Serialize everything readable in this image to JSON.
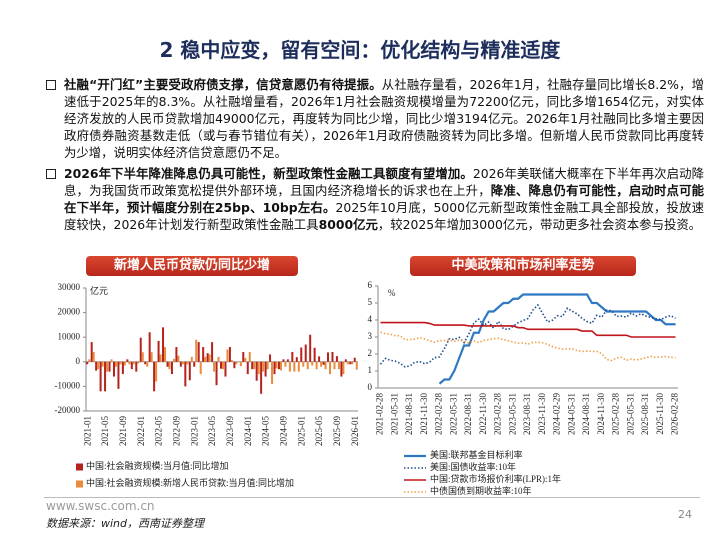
{
  "title": "2 稳中应变，留有空间：优化结构与精准适度",
  "bullets": [
    {
      "segments": [
        {
          "text": "社融“开门红”主要受政府债支撑，信贷意愿仍有待提振。",
          "bold": true
        },
        {
          "text": "从社融存量看，2026年1月，社融存量同比增长8.2%，增速低于2025年的8.3%。从社融增量看，2026年1月社会融资规模增量为72200亿元，同比多增1654亿元，对实体经济发放的人民币贷款增加49000亿元，再度转为同比少增，同比少增3194亿元。2026年1月社融同比多增主要因政府债券融资基数走低（或与春节错位有关），2026年1月政府债融资转为同比多增。但新增人民币贷款同比再度转为少增，说明实体经济信贷意愿仍不足。",
          "bold": false
        }
      ]
    },
    {
      "segments": [
        {
          "text": "2026年下半年降准降息仍具可能性，新型政策性金融工具额度有望增加。",
          "bold": true
        },
        {
          "text": "2026年美联储大概率在下半年再次启动降息，为我国货币政策宽松提供外部环境，且国内经济稳增长的诉求也在上升，",
          "bold": false
        },
        {
          "text": "降准、降息仍有可能性，启动时点可能在下半年，预计幅度分别在25bp、10bp左右。",
          "bold": true
        },
        {
          "text": "2025年10月底，5000亿元新型政策性金融工具全部投放，投放速度较快，2026年计划发行新型政策性金融工具",
          "bold": false
        },
        {
          "text": "8000亿元",
          "bold": true
        },
        {
          "text": "，较2025年增加3000亿元，带动更多社会资本参与投资。",
          "bold": false
        }
      ]
    }
  ],
  "chart_data": [
    {
      "type": "bar",
      "title": "新增人民币贷款仍同比少增",
      "y_unit": "亿元",
      "categories": [
        "2021-01",
        null,
        null,
        null,
        "2021-05",
        null,
        null,
        null,
        "2021-09",
        null,
        null,
        null,
        "2022-01",
        null,
        null,
        null,
        "2022-05",
        null,
        null,
        null,
        "2022-09",
        null,
        null,
        null,
        "2023-01",
        null,
        null,
        null,
        "2023-05",
        null,
        null,
        null,
        "2023-09",
        null,
        null,
        null,
        "2024-01",
        null,
        null,
        null,
        "2024-05",
        null,
        null,
        null,
        "2024-09",
        null,
        null,
        null,
        "2025-01",
        null,
        null,
        null,
        "2025-05",
        null,
        null,
        null,
        "2025-09",
        null,
        null,
        null,
        "2026-01"
      ],
      "series": [
        {
          "name": "中国:社会融资规模:当月值:同比增加",
          "color": "#b5231c",
          "values": [
            -1000,
            8000,
            -3600,
            -12000,
            -12000,
            -4000,
            -6000,
            -11000,
            -5000,
            1000,
            -3000,
            -4000,
            9800,
            -1000,
            12000,
            -12000,
            8500,
            14000,
            -2000,
            -5000,
            6000,
            -2000,
            -10000,
            -7500,
            -2000,
            8000,
            6000,
            3500,
            8000,
            -9500,
            -2800,
            -6000,
            6000,
            -2600,
            0,
            4000,
            -5000,
            -3000,
            -7700,
            -13000,
            -6000,
            3000,
            -5000,
            -3000,
            1000,
            1000,
            4000,
            1900,
            5800,
            7000,
            11000,
            5700,
            2200,
            -1200,
            3800,
            4000,
            2300,
            -6000,
            1000,
            -1000,
            1654
          ]
        },
        {
          "name": "中国:社会融资规模:新增人民币贷款:当月值:同比增加",
          "color": "#e98a3c",
          "values": [
            1000,
            4000,
            -3000,
            -2000,
            -4000,
            1000,
            -2000,
            -1000,
            -1500,
            -1000,
            -1000,
            -700,
            3900,
            -2000,
            3900,
            -8000,
            3000,
            6000,
            -3000,
            1200,
            2500,
            -1000,
            -1000,
            2000,
            9000,
            -5000,
            2000,
            3000,
            -4000,
            2000,
            -3000,
            5000,
            700,
            -1000,
            -1800,
            1600,
            4000,
            -3000,
            -5000,
            -4000,
            -3000,
            -9000,
            -2700,
            -3500,
            -2000,
            -4000,
            -4000,
            -4000,
            -2000,
            -3000,
            -1500,
            -3000,
            -2000,
            -3000,
            -5000,
            -3000,
            -3000,
            -5000,
            -1000,
            -1000,
            -3194
          ]
        }
      ],
      "ylim": [
        -20000,
        30000
      ],
      "yticks": [
        -20000,
        -10000,
        0,
        10000,
        20000,
        30000
      ]
    },
    {
      "type": "line",
      "title": "中美政策和市场利率走势",
      "y_unit": "%",
      "categories": [
        "2021-02-28",
        null,
        null,
        "2021-05-31",
        null,
        null,
        "2021-08-31",
        null,
        null,
        "2021-11-30",
        null,
        null,
        "2022-02-28",
        null,
        null,
        "2022-05-31",
        null,
        null,
        "2022-08-31",
        null,
        null,
        "2022-11-30",
        null,
        null,
        "2023-02-28",
        null,
        null,
        "2023-05-31",
        null,
        null,
        "2023-08-31",
        null,
        null,
        "2023-11-30",
        null,
        null,
        "2024-02-29",
        null,
        null,
        "2024-05-31",
        null,
        null,
        "2024-08-31",
        null,
        null,
        "2024-11-30",
        null,
        null,
        "2025-02-28",
        null,
        null,
        "2025-05-31",
        null,
        null,
        "2025-08-31",
        null,
        null,
        "2025-11-30",
        null,
        null,
        "2026-02-28"
      ],
      "series": [
        {
          "name": "美国:联邦基金目标利率",
          "color": "#2f78c4",
          "style": "solid",
          "width": 2.2,
          "values": [
            null,
            null,
            null,
            null,
            null,
            null,
            null,
            null,
            null,
            null,
            null,
            null,
            0.25,
            0.5,
            0.5,
            1.0,
            1.75,
            2.5,
            2.5,
            3.25,
            3.25,
            4.0,
            4.5,
            4.5,
            4.75,
            5.0,
            5.0,
            5.25,
            5.25,
            5.5,
            5.5,
            5.5,
            5.5,
            5.5,
            5.5,
            5.5,
            5.5,
            5.5,
            5.5,
            5.5,
            5.5,
            5.5,
            5.5,
            5.0,
            5.0,
            4.75,
            4.5,
            4.5,
            4.5,
            4.5,
            4.5,
            4.5,
            4.5,
            4.5,
            4.5,
            4.25,
            4.0,
            4.0,
            3.75,
            3.75,
            3.75
          ]
        },
        {
          "name": "美国:国债收益率:10年",
          "color": "#1f4e8c",
          "style": "dotted",
          "width": 1.6,
          "values": [
            1.4,
            1.74,
            1.63,
            1.58,
            1.45,
            1.24,
            1.3,
            1.52,
            1.55,
            1.43,
            1.52,
            1.79,
            1.83,
            2.32,
            2.89,
            2.85,
            2.98,
            2.67,
            3.19,
            3.83,
            4.05,
            3.68,
            3.88,
            3.52,
            3.92,
            3.48,
            3.44,
            3.64,
            3.84,
            3.97,
            4.09,
            4.59,
            4.88,
            4.37,
            3.88,
            3.99,
            4.25,
            4.2,
            4.69,
            4.51,
            4.36,
            4.09,
            3.91,
            3.81,
            4.28,
            4.17,
            4.58,
            4.54,
            4.21,
            4.23,
            4.17,
            4.41,
            4.24,
            4.37,
            4.23,
            4.15,
            4.08,
            4.02,
            4.17,
            4.26,
            4.1
          ]
        },
        {
          "name": "中国:贷款市场报价利率(LPR):1年",
          "color": "#c0141c",
          "style": "solid",
          "width": 1.6,
          "values": [
            3.85,
            3.85,
            3.85,
            3.85,
            3.85,
            3.85,
            3.85,
            3.85,
            3.85,
            3.85,
            3.8,
            3.7,
            3.7,
            3.7,
            3.7,
            3.7,
            3.7,
            3.7,
            3.65,
            3.65,
            3.65,
            3.65,
            3.65,
            3.65,
            3.65,
            3.65,
            3.65,
            3.65,
            3.55,
            3.55,
            3.45,
            3.45,
            3.45,
            3.45,
            3.45,
            3.45,
            3.45,
            3.45,
            3.45,
            3.45,
            3.45,
            3.35,
            3.35,
            3.35,
            3.1,
            3.1,
            3.1,
            3.1,
            3.1,
            3.1,
            3.1,
            3.0,
            3.0,
            3.0,
            3.0,
            3.0,
            3.0,
            3.0,
            3.0,
            3.0,
            3.0
          ]
        },
        {
          "name": "中债国债到期收益率:10年",
          "color": "#f0a04b",
          "style": "dotted",
          "width": 1.6,
          "values": [
            3.28,
            3.19,
            3.16,
            3.08,
            3.08,
            2.84,
            2.85,
            2.88,
            2.96,
            2.89,
            2.78,
            2.69,
            2.79,
            2.79,
            2.83,
            2.74,
            2.82,
            2.76,
            2.63,
            2.76,
            2.67,
            2.8,
            2.84,
            2.9,
            2.92,
            2.85,
            2.78,
            2.7,
            2.64,
            2.65,
            2.58,
            2.68,
            2.69,
            2.66,
            2.56,
            2.43,
            2.34,
            2.29,
            2.31,
            2.3,
            2.21,
            2.15,
            2.17,
            2.15,
            2.15,
            2.02,
            1.68,
            1.62,
            1.77,
            1.81,
            1.63,
            1.7,
            1.65,
            1.71,
            1.78,
            1.86,
            1.8,
            1.83,
            1.85,
            1.81,
            1.79
          ]
        }
      ],
      "ylim": [
        0,
        6
      ],
      "yticks": [
        0,
        1,
        2,
        3,
        4,
        5,
        6
      ]
    }
  ],
  "footer": {
    "website": "www.swsc.com.cn",
    "source": "数据来源：wind，西南证券整理",
    "page": 24
  }
}
